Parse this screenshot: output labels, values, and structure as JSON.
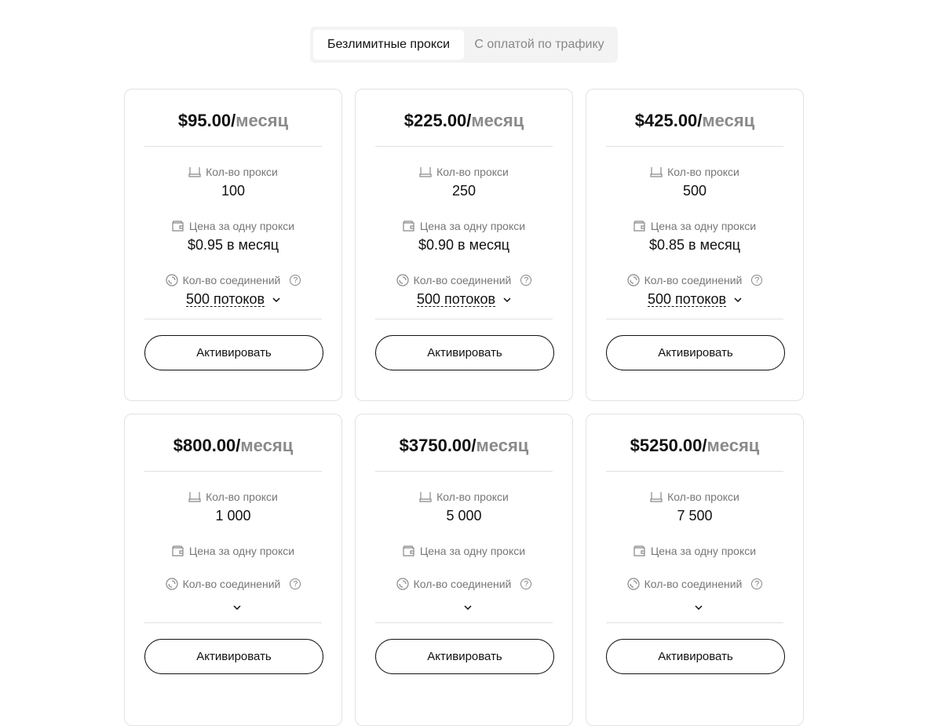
{
  "tabs": [
    {
      "label": "Безлимитные прокси",
      "active": true
    },
    {
      "label": "С оплатой по трафику",
      "active": false
    }
  ],
  "labels": {
    "proxy_count": "Кол-во прокси",
    "price_per_proxy": "Цена за одну прокси",
    "connections": "Кол-во соединений",
    "help": "?",
    "unit": "месяц",
    "activate": "Активировать"
  },
  "icons": {
    "proxy_count": "router-icon",
    "price": "wallet-icon",
    "connections": "spiral-icon",
    "help": "question-circle-icon",
    "dropdown": "chevron-down-icon"
  },
  "plans": [
    {
      "price": "$95.00/",
      "count": "100",
      "per": "$0.95 в месяц",
      "threads": "500 потоков"
    },
    {
      "price": "$225.00/",
      "count": "250",
      "per": "$0.90 в месяц",
      "threads": "500 потоков"
    },
    {
      "price": "$425.00/",
      "count": "500",
      "per": "$0.85 в месяц",
      "threads": "500 потоков"
    },
    {
      "price": "$800.00/",
      "count": "1 000"
    },
    {
      "price": "$3750.00/",
      "count": "5 000"
    },
    {
      "price": "$5250.00/",
      "count": "7 500"
    }
  ]
}
